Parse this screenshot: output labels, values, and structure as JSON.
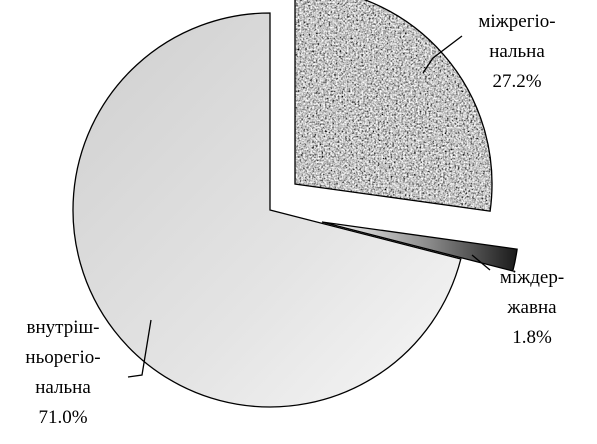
{
  "chart_data": {
    "type": "pie",
    "slices": [
      {
        "label_lines": [
          "міжрегіо-",
          "нальна"
        ],
        "value": 27.2,
        "value_label": "27.2%",
        "exploded": true,
        "fill": "texture",
        "color": "#9a9a9a"
      },
      {
        "label_lines": [
          "міждер-",
          "жавна"
        ],
        "value": 1.8,
        "value_label": "1.8%",
        "exploded": true,
        "fill": "gradient",
        "color": "#555555"
      },
      {
        "label_lines": [
          "внутріш-",
          "ньорегіо-",
          "нальна"
        ],
        "value": 71.0,
        "value_label": "71.0%",
        "exploded": false,
        "fill": "gradient",
        "color": "#d9d9d9"
      }
    ],
    "start_angle": "12 o'clock",
    "direction": "clockwise",
    "legend": "none",
    "labels": "outside-with-leaders"
  }
}
